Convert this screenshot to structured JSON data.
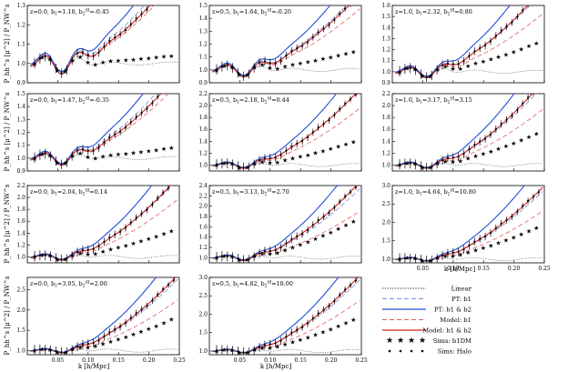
{
  "figure": {
    "ylabel": "P_hh^s [μ^2] / P_NW^s",
    "xlabel": "k [h/Mpc]",
    "x_ticks": [
      "0.05",
      "0.10",
      "0.15",
      "0.20",
      "0.25"
    ],
    "x_range": [
      0.0,
      0.25
    ]
  },
  "legend": [
    {
      "label": "Linear",
      "style": "linear"
    },
    {
      "label": "PT: b1",
      "style": "pt1"
    },
    {
      "label": "PT: b1 & b2",
      "style": "pt2"
    },
    {
      "label": "Model: b1",
      "style": "m1"
    },
    {
      "label": "Model: b1 & b2",
      "style": "m2"
    },
    {
      "label": "Sims: b1DM",
      "style": "sdm"
    },
    {
      "label": "Sims: Halo",
      "style": "shalo"
    }
  ],
  "colors": {
    "pt": "#1f4fd8",
    "pt_dash": "#6f8fdc",
    "model": "#d42020",
    "model_dash": "#e06060",
    "linear": "#555555",
    "sims": "#000000"
  },
  "chart_data": [
    {
      "type": "line",
      "panel": "r0c0",
      "z": "0.0",
      "b1": "1.18",
      "b2": "-0.45",
      "ylim": [
        0.9,
        1.3
      ],
      "yticks": [
        "0.9",
        "1.0",
        "1.1",
        "1.2",
        "1.3"
      ],
      "rise": 1.2,
      "sep": 0.15
    },
    {
      "type": "line",
      "panel": "r0c1",
      "z": "0.5",
      "b1": "1.64",
      "b2": "-0.20",
      "ylim": [
        0.9,
        1.5
      ],
      "yticks": [
        "0.9",
        "1.0",
        "1.1",
        "1.2",
        "1.3",
        "1.4",
        "1.5"
      ],
      "rise": 1.0,
      "sep": 0.35
    },
    {
      "type": "line",
      "panel": "r0c2",
      "z": "1.0",
      "b1": "2.32",
      "b2": "0.80",
      "ylim": [
        0.9,
        1.6
      ],
      "yticks": [
        "0.9",
        "1.0",
        "1.1",
        "1.2",
        "1.3",
        "1.4",
        "1.5",
        "1.6"
      ],
      "rise": 1.1,
      "sep": 0.55
    },
    {
      "type": "line",
      "panel": "r1c0",
      "z": "0.0",
      "b1": "1.47",
      "b2": "-0.35",
      "ylim": [
        0.9,
        1.5
      ],
      "yticks": [
        "0.9",
        "1.0",
        "1.1",
        "1.2",
        "1.3",
        "1.4",
        "1.5"
      ],
      "rise": 1.1,
      "sep": 0.2
    },
    {
      "type": "line",
      "panel": "r1c1",
      "z": "0.5",
      "b1": "2.18",
      "b2": "0.44",
      "ylim": [
        0.9,
        2.2
      ],
      "yticks": [
        "1.0",
        "1.2",
        "1.4",
        "1.6",
        "1.8",
        "2.0",
        "2.2"
      ],
      "rise": 1.0,
      "sep": 0.45
    },
    {
      "type": "line",
      "panel": "r1c2",
      "z": "1.0",
      "b1": "3.17",
      "b2": "3.15",
      "ylim": [
        0.9,
        2.2
      ],
      "yticks": [
        "1.0",
        "1.2",
        "1.4",
        "1.6",
        "1.8",
        "2.0",
        "2.2"
      ],
      "rise": 1.1,
      "sep": 0.6
    },
    {
      "type": "line",
      "panel": "r2c0",
      "z": "0.0",
      "b1": "2.04",
      "b2": "0.14",
      "ylim": [
        0.9,
        2.2
      ],
      "yticks": [
        "1.0",
        "1.2",
        "1.4",
        "1.6",
        "1.8",
        "2.0",
        "2.2"
      ],
      "rise": 1.05,
      "sep": 0.5
    },
    {
      "type": "line",
      "panel": "r2c1",
      "z": "0.5",
      "b1": "3.13",
      "b2": "2.70",
      "ylim": [
        0.9,
        2.4
      ],
      "yticks": [
        "1.0",
        "1.2",
        "1.4",
        "1.6",
        "1.8",
        "2.0",
        "2.2",
        "2.4"
      ],
      "rise": 1.0,
      "sep": 0.7
    },
    {
      "type": "line",
      "panel": "r2c2",
      "z": "1.0",
      "b1": "4.64",
      "b2": "10.80",
      "ylim": [
        0.9,
        3.0
      ],
      "yticks": [
        "1.0",
        "1.5",
        "2.0",
        "2.5",
        "3.0"
      ],
      "rise": 0.95,
      "sep": 0.6
    },
    {
      "type": "line",
      "panel": "r3c0",
      "z": "0.0",
      "b1": "3.05",
      "b2": "2.00",
      "ylim": [
        0.9,
        2.8
      ],
      "yticks": [
        "1.0",
        "1.5",
        "2.0",
        "2.5"
      ],
      "rise": 1.0,
      "sep": 0.6
    },
    {
      "type": "line",
      "panel": "r3c1",
      "z": "0.5",
      "b1": "4.82",
      "b2": "18.00",
      "ylim": [
        0.9,
        3.0
      ],
      "yticks": [
        "1.0",
        "1.5",
        "2.0",
        "2.5",
        "3.0"
      ],
      "rise": 1.0,
      "sep": 0.6
    }
  ]
}
